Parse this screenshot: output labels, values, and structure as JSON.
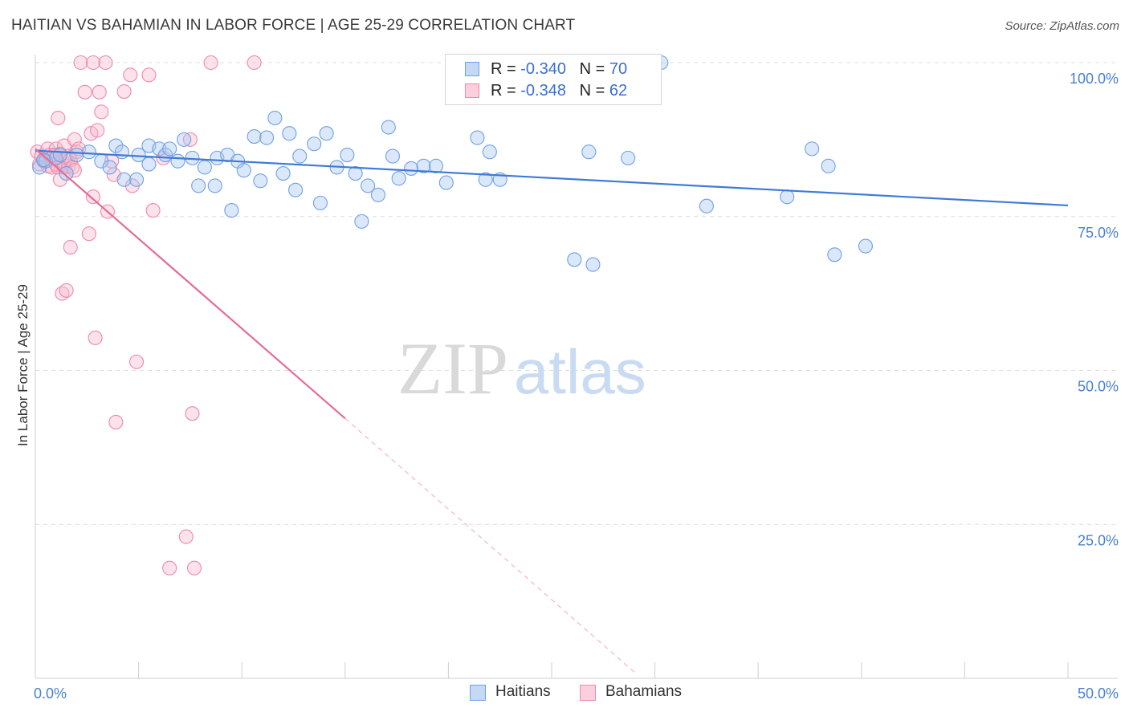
{
  "title": "HAITIAN VS BAHAMIAN IN LABOR FORCE | AGE 25-29 CORRELATION CHART",
  "source": "Source: ZipAtlas.com",
  "watermark": {
    "zip": "ZIP",
    "atlas": "atlas"
  },
  "legend": {
    "haitians": {
      "r_label": "R = ",
      "r_value": "-0.340",
      "n_label": "N = ",
      "n_value": "70",
      "color": "#6fa0e6"
    },
    "bahamians": {
      "r_label": "R = ",
      "r_value": "-0.348",
      "n_label": "N = ",
      "n_value": "62",
      "color": "#ee8aaa"
    }
  },
  "bottom_legend": {
    "haitians": "Haitians",
    "bahamians": "Bahamians"
  },
  "chart_data": {
    "type": "scatter",
    "title": "HAITIAN VS BAHAMIAN IN LABOR FORCE | AGE 25-29 CORRELATION CHART",
    "xlabel": "",
    "ylabel": "In Labor Force | Age 25-29",
    "xlim": [
      0,
      50
    ],
    "ylim": [
      0,
      100
    ],
    "x_tick_labels": [
      "0.0%",
      "50.0%"
    ],
    "y_ticks": [
      25,
      50,
      75,
      100
    ],
    "y_tick_labels": [
      "25.0%",
      "50.0%",
      "75.0%",
      "100.0%"
    ],
    "grid": true,
    "legend_position": "top-center",
    "series": [
      {
        "name": "Haitians",
        "color": "#6fa0e6",
        "trend": {
          "x": [
            0,
            50
          ],
          "y": [
            85.7,
            76.8
          ]
        },
        "points": [
          [
            0.2,
            83.0
          ],
          [
            0.5,
            84.0
          ],
          [
            1.0,
            84.5
          ],
          [
            1.2,
            85.0
          ],
          [
            1.5,
            82.0
          ],
          [
            2.0,
            85.0
          ],
          [
            2.6,
            85.5
          ],
          [
            3.2,
            84.0
          ],
          [
            3.6,
            83.0
          ],
          [
            3.9,
            86.5
          ],
          [
            4.2,
            85.5
          ],
          [
            4.3,
            81.0
          ],
          [
            4.9,
            81.0
          ],
          [
            5.0,
            85.0
          ],
          [
            5.5,
            83.5
          ],
          [
            5.5,
            86.5
          ],
          [
            6.0,
            86.0
          ],
          [
            6.3,
            85.0
          ],
          [
            6.5,
            86.0
          ],
          [
            6.9,
            84.0
          ],
          [
            7.2,
            87.5
          ],
          [
            7.6,
            84.5
          ],
          [
            7.9,
            80.0
          ],
          [
            8.2,
            83.0
          ],
          [
            8.7,
            80.0
          ],
          [
            8.8,
            84.5
          ],
          [
            9.3,
            85.0
          ],
          [
            9.5,
            76.0
          ],
          [
            9.8,
            84.0
          ],
          [
            10.1,
            82.5
          ],
          [
            10.6,
            88.0
          ],
          [
            10.9,
            80.8
          ],
          [
            11.2,
            87.8
          ],
          [
            11.6,
            91.0
          ],
          [
            12.0,
            82.0
          ],
          [
            12.3,
            88.5
          ],
          [
            12.6,
            79.3
          ],
          [
            12.8,
            84.8
          ],
          [
            13.5,
            86.8
          ],
          [
            13.8,
            77.2
          ],
          [
            14.1,
            88.5
          ],
          [
            14.6,
            83.0
          ],
          [
            15.1,
            85.0
          ],
          [
            15.5,
            82.0
          ],
          [
            15.8,
            74.2
          ],
          [
            16.1,
            80.0
          ],
          [
            16.6,
            78.5
          ],
          [
            17.1,
            89.5
          ],
          [
            17.3,
            84.8
          ],
          [
            17.6,
            81.2
          ],
          [
            18.2,
            82.8
          ],
          [
            18.8,
            83.2
          ],
          [
            19.4,
            83.2
          ],
          [
            19.9,
            80.5
          ],
          [
            21.4,
            87.8
          ],
          [
            21.8,
            81.0
          ],
          [
            22.0,
            85.5
          ],
          [
            22.5,
            81.0
          ],
          [
            26.1,
            68.0
          ],
          [
            26.8,
            85.5
          ],
          [
            27.0,
            67.2
          ],
          [
            28.7,
            84.5
          ],
          [
            30.3,
            100.0
          ],
          [
            32.5,
            76.7
          ],
          [
            36.4,
            78.2
          ],
          [
            37.6,
            86.0
          ],
          [
            38.4,
            83.2
          ],
          [
            38.7,
            68.8
          ],
          [
            40.2,
            70.2
          ],
          [
            0.4,
            84.2
          ]
        ]
      },
      {
        "name": "Bahamians",
        "color": "#ee8aaa",
        "trend": {
          "x": [
            0,
            15
          ],
          "y": [
            86.0,
            42.2
          ]
        },
        "trend_extension": {
          "x": [
            15,
            29
          ],
          "y": [
            42.2,
            1.0
          ]
        },
        "points": [
          [
            0.1,
            85.5
          ],
          [
            0.2,
            83.5
          ],
          [
            0.3,
            84.8
          ],
          [
            0.4,
            84.0
          ],
          [
            0.5,
            84.2
          ],
          [
            0.6,
            86.0
          ],
          [
            0.6,
            83.2
          ],
          [
            0.7,
            85.0
          ],
          [
            0.8,
            84.4
          ],
          [
            0.8,
            83.0
          ],
          [
            0.9,
            84.8
          ],
          [
            1.0,
            86.0
          ],
          [
            1.0,
            83.5
          ],
          [
            1.1,
            83.0
          ],
          [
            1.1,
            91.0
          ],
          [
            1.2,
            81.0
          ],
          [
            1.2,
            85.2
          ],
          [
            1.3,
            84.0
          ],
          [
            1.3,
            62.5
          ],
          [
            1.4,
            86.5
          ],
          [
            1.4,
            83.0
          ],
          [
            1.5,
            63.0
          ],
          [
            1.5,
            84.5
          ],
          [
            1.6,
            83.2
          ],
          [
            1.6,
            84.8
          ],
          [
            1.7,
            84.2
          ],
          [
            1.7,
            70.0
          ],
          [
            1.8,
            83.0
          ],
          [
            1.9,
            82.5
          ],
          [
            1.9,
            87.5
          ],
          [
            2.0,
            85.5
          ],
          [
            2.1,
            86.0
          ],
          [
            2.2,
            100.0
          ],
          [
            2.4,
            95.2
          ],
          [
            2.6,
            72.2
          ],
          [
            2.7,
            88.5
          ],
          [
            2.8,
            100.0
          ],
          [
            2.8,
            78.2
          ],
          [
            2.9,
            55.3
          ],
          [
            3.0,
            89.0
          ],
          [
            3.1,
            95.2
          ],
          [
            3.2,
            92.0
          ],
          [
            3.4,
            100.0
          ],
          [
            3.5,
            75.8
          ],
          [
            3.7,
            84.0
          ],
          [
            3.8,
            81.8
          ],
          [
            3.9,
            41.6
          ],
          [
            4.3,
            95.3
          ],
          [
            4.6,
            98.0
          ],
          [
            4.7,
            80.0
          ],
          [
            4.9,
            51.4
          ],
          [
            5.5,
            98.0
          ],
          [
            5.7,
            76.0
          ],
          [
            6.2,
            84.5
          ],
          [
            6.5,
            17.9
          ],
          [
            7.3,
            23.0
          ],
          [
            7.5,
            87.5
          ],
          [
            7.6,
            43.0
          ],
          [
            7.7,
            17.9
          ],
          [
            8.5,
            100.0
          ],
          [
            10.6,
            100.0
          ],
          [
            0.9,
            85.0
          ]
        ]
      }
    ]
  }
}
